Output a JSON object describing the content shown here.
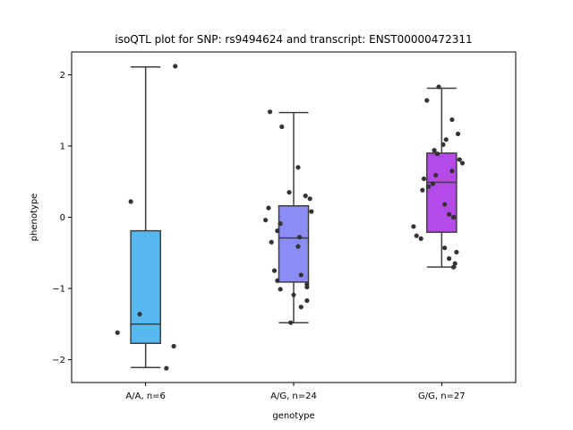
{
  "chart_data": {
    "type": "box",
    "title": "isoQTL plot for SNP: rs9494624 and transcript: ENST00000472311",
    "xlabel": "genotype",
    "ylabel": "phenotype",
    "ylim": [
      -2.32,
      2.32
    ],
    "yticks": [
      -2,
      -1,
      0,
      1,
      2
    ],
    "ytick_labels": [
      "−2",
      "−1",
      "0",
      "1",
      "2"
    ],
    "grid": false,
    "legend": "none",
    "categories": [
      "A/A, n=6",
      "A/G, n=24",
      "G/G, n=27"
    ],
    "colors": [
      "#56b8ee",
      "#8c8cf5",
      "#b44ae7"
    ],
    "boxes": [
      {
        "category": "A/A, n=6",
        "q1": -1.77,
        "median": -1.5,
        "q3": -0.19,
        "whisker_low": -2.11,
        "whisker_high": 2.11
      },
      {
        "category": "A/G, n=24",
        "q1": -0.91,
        "median": -0.29,
        "q3": 0.16,
        "whisker_low": -1.48,
        "whisker_high": 1.47
      },
      {
        "category": "G/G, n=27",
        "q1": -0.21,
        "median": 0.49,
        "q3": 0.9,
        "whisker_low": -0.7,
        "whisker_high": 1.81
      }
    ],
    "points": [
      {
        "category": "A/A, n=6",
        "jitter": 0.2,
        "y": 2.12
      },
      {
        "category": "A/A, n=6",
        "jitter": -0.1,
        "y": 0.22
      },
      {
        "category": "A/A, n=6",
        "jitter": -0.04,
        "y": -1.36
      },
      {
        "category": "A/A, n=6",
        "jitter": -0.19,
        "y": -1.62
      },
      {
        "category": "A/A, n=6",
        "jitter": 0.19,
        "y": -1.81
      },
      {
        "category": "A/A, n=6",
        "jitter": 0.14,
        "y": -2.12
      },
      {
        "category": "A/G, n=24",
        "jitter": -0.16,
        "y": 1.48
      },
      {
        "category": "A/G, n=24",
        "jitter": -0.08,
        "y": 1.27
      },
      {
        "category": "A/G, n=24",
        "jitter": 0.03,
        "y": 0.7
      },
      {
        "category": "A/G, n=24",
        "jitter": -0.03,
        "y": 0.35
      },
      {
        "category": "A/G, n=24",
        "jitter": 0.08,
        "y": 0.3
      },
      {
        "category": "A/G, n=24",
        "jitter": 0.11,
        "y": 0.26
      },
      {
        "category": "A/G, n=24",
        "jitter": -0.17,
        "y": 0.13
      },
      {
        "category": "A/G, n=24",
        "jitter": 0.12,
        "y": 0.08
      },
      {
        "category": "A/G, n=24",
        "jitter": -0.19,
        "y": -0.04
      },
      {
        "category": "A/G, n=24",
        "jitter": -0.09,
        "y": -0.09
      },
      {
        "category": "A/G, n=24",
        "jitter": -0.11,
        "y": -0.19
      },
      {
        "category": "A/G, n=24",
        "jitter": 0.04,
        "y": -0.28
      },
      {
        "category": "A/G, n=24",
        "jitter": -0.15,
        "y": -0.35
      },
      {
        "category": "A/G, n=24",
        "jitter": 0.03,
        "y": -0.41
      },
      {
        "category": "A/G, n=24",
        "jitter": -0.13,
        "y": -0.75
      },
      {
        "category": "A/G, n=24",
        "jitter": 0.05,
        "y": -0.81
      },
      {
        "category": "A/G, n=24",
        "jitter": -0.11,
        "y": -0.89
      },
      {
        "category": "A/G, n=24",
        "jitter": 0.09,
        "y": -0.94
      },
      {
        "category": "A/G, n=24",
        "jitter": -0.09,
        "y": -1.01
      },
      {
        "category": "A/G, n=24",
        "jitter": 0.0,
        "y": -1.09
      },
      {
        "category": "A/G, n=24",
        "jitter": 0.09,
        "y": -1.17
      },
      {
        "category": "A/G, n=24",
        "jitter": 0.05,
        "y": -1.26
      },
      {
        "category": "A/G, n=24",
        "jitter": -0.02,
        "y": -1.48
      },
      {
        "category": "A/G, n=24",
        "jitter": 0.09,
        "y": -0.98
      },
      {
        "category": "G/G, n=27",
        "jitter": -0.02,
        "y": 1.83
      },
      {
        "category": "G/G, n=27",
        "jitter": -0.1,
        "y": 1.64
      },
      {
        "category": "G/G, n=27",
        "jitter": 0.07,
        "y": 1.37
      },
      {
        "category": "G/G, n=27",
        "jitter": 0.11,
        "y": 1.17
      },
      {
        "category": "G/G, n=27",
        "jitter": 0.03,
        "y": 1.09
      },
      {
        "category": "G/G, n=27",
        "jitter": 0.01,
        "y": 1.02
      },
      {
        "category": "G/G, n=27",
        "jitter": -0.05,
        "y": 0.94
      },
      {
        "category": "G/G, n=27",
        "jitter": -0.03,
        "y": 0.89
      },
      {
        "category": "G/G, n=27",
        "jitter": 0.12,
        "y": 0.81
      },
      {
        "category": "G/G, n=27",
        "jitter": 0.14,
        "y": 0.76
      },
      {
        "category": "G/G, n=27",
        "jitter": 0.07,
        "y": 0.65
      },
      {
        "category": "G/G, n=27",
        "jitter": -0.04,
        "y": 0.59
      },
      {
        "category": "G/G, n=27",
        "jitter": -0.12,
        "y": 0.54
      },
      {
        "category": "G/G, n=27",
        "jitter": -0.06,
        "y": 0.47
      },
      {
        "category": "G/G, n=27",
        "jitter": -0.09,
        "y": 0.43
      },
      {
        "category": "G/G, n=27",
        "jitter": -0.13,
        "y": 0.38
      },
      {
        "category": "G/G, n=27",
        "jitter": 0.02,
        "y": 0.18
      },
      {
        "category": "G/G, n=27",
        "jitter": 0.05,
        "y": 0.04
      },
      {
        "category": "G/G, n=27",
        "jitter": 0.08,
        "y": 0.0
      },
      {
        "category": "G/G, n=27",
        "jitter": -0.19,
        "y": -0.13
      },
      {
        "category": "G/G, n=27",
        "jitter": -0.17,
        "y": -0.26
      },
      {
        "category": "G/G, n=27",
        "jitter": -0.14,
        "y": -0.3
      },
      {
        "category": "G/G, n=27",
        "jitter": 0.02,
        "y": -0.43
      },
      {
        "category": "G/G, n=27",
        "jitter": 0.1,
        "y": -0.49
      },
      {
        "category": "G/G, n=27",
        "jitter": 0.05,
        "y": -0.58
      },
      {
        "category": "G/G, n=27",
        "jitter": 0.09,
        "y": -0.65
      },
      {
        "category": "G/G, n=27",
        "jitter": 0.08,
        "y": -0.7
      }
    ]
  }
}
